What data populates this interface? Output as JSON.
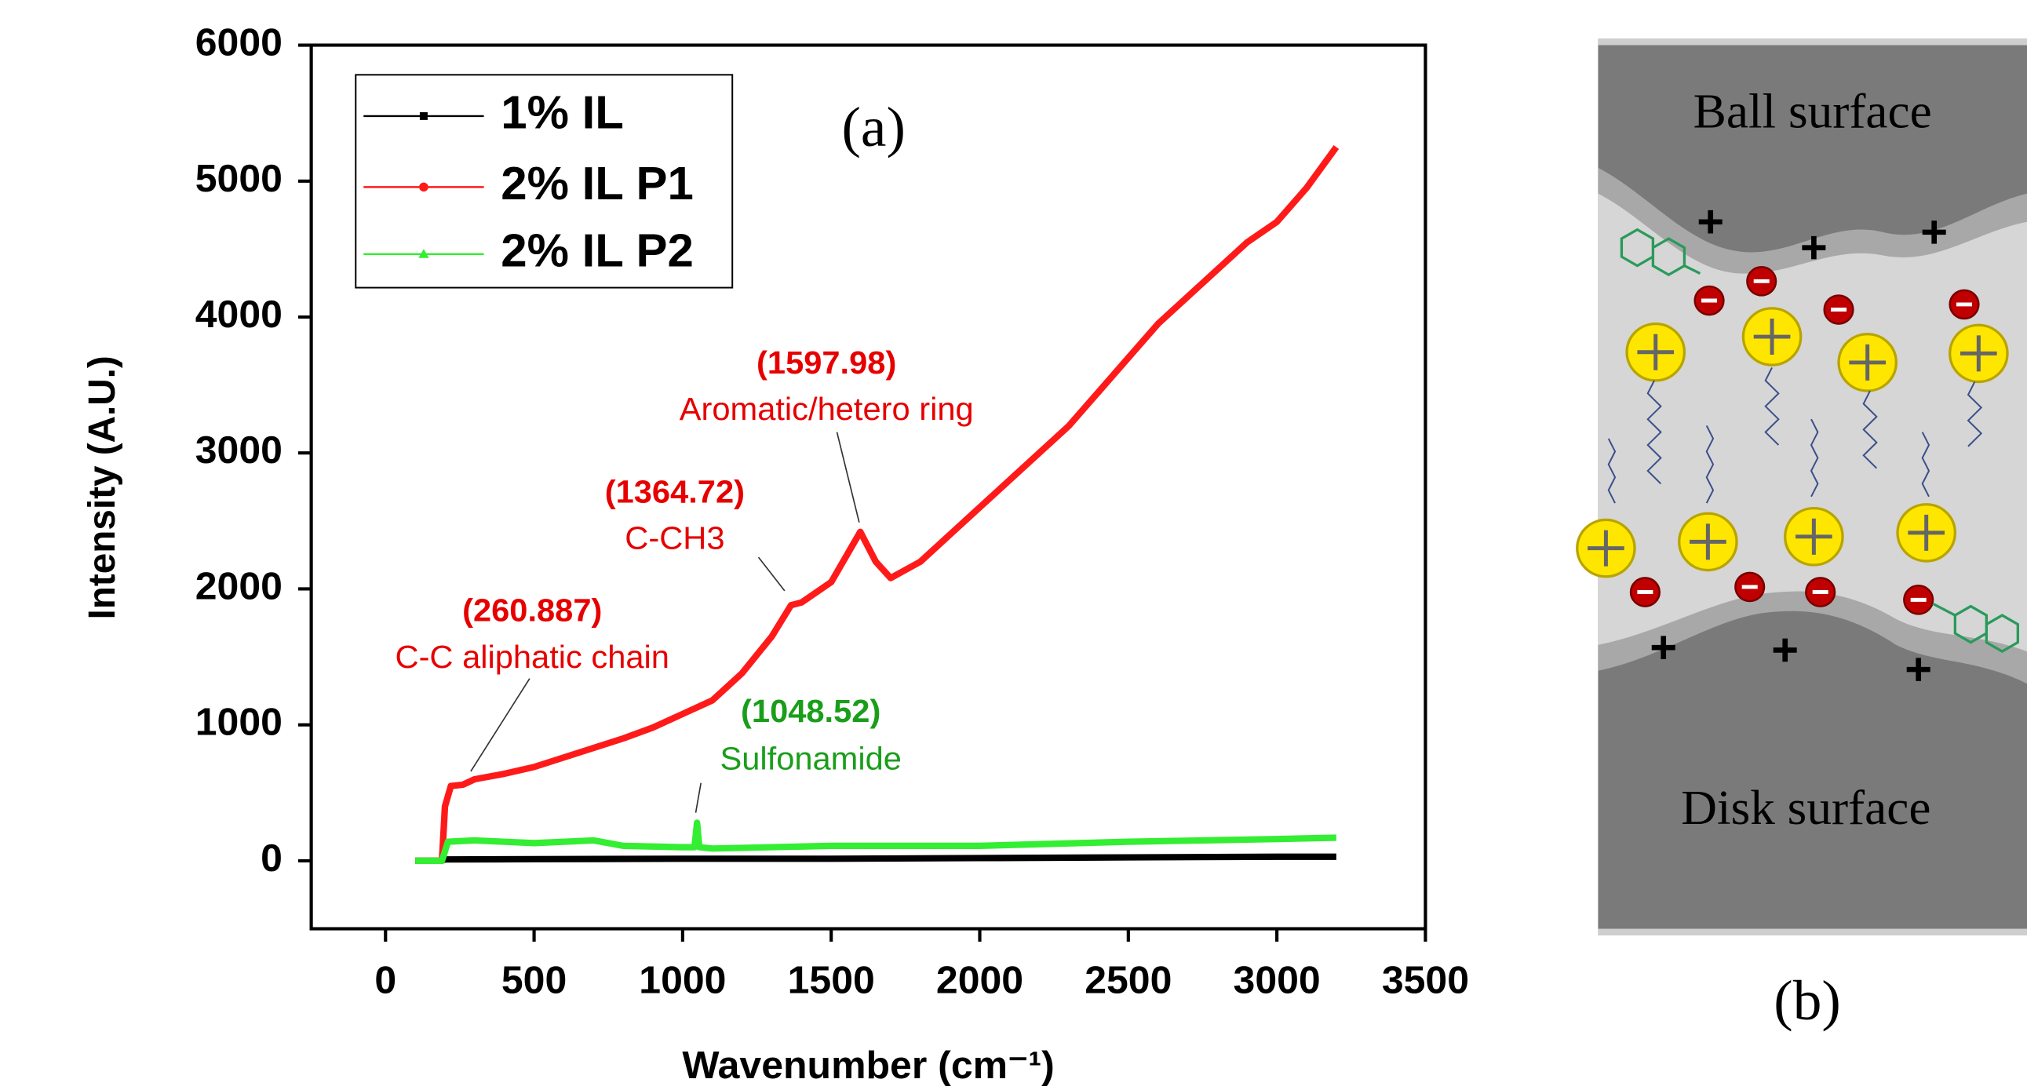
{
  "chart_data": {
    "type": "line",
    "panel_label": "(a)",
    "x_label": "Wavenumber (cm⁻¹)",
    "y_label": "Intensity (A.U.)",
    "xlim": [
      -250,
      3500
    ],
    "ylim": [
      -500,
      6000
    ],
    "xticks": [
      0,
      500,
      1000,
      1500,
      2000,
      2500,
      3000,
      3500
    ],
    "yticks": [
      0,
      1000,
      2000,
      3000,
      4000,
      5000,
      6000
    ],
    "legend": "top-left",
    "series": [
      {
        "name": "1% IL",
        "color": "#000000",
        "marker": "square",
        "x": [
          100,
          190,
          200,
          500,
          1000,
          1500,
          2000,
          2500,
          3000,
          3200
        ],
        "values": [
          0,
          0,
          10,
          12,
          15,
          15,
          20,
          25,
          30,
          30
        ]
      },
      {
        "name": "2% IL P1",
        "color": "#ff1a1a",
        "marker": "circle",
        "x": [
          100,
          150,
          190,
          200,
          220,
          260.887,
          300,
          400,
          500,
          600,
          700,
          800,
          900,
          1000,
          1100,
          1200,
          1300,
          1364.72,
          1400,
          1500,
          1597.98,
          1650,
          1700,
          1800,
          1900,
          2000,
          2100,
          2200,
          2300,
          2400,
          2500,
          2600,
          2700,
          2800,
          2900,
          3000,
          3100,
          3200
        ],
        "values": [
          0,
          0,
          0,
          400,
          550,
          560,
          600,
          640,
          690,
          760,
          830,
          900,
          980,
          1080,
          1180,
          1380,
          1650,
          1880,
          1900,
          2050,
          2420,
          2200,
          2080,
          2200,
          2400,
          2600,
          2800,
          3000,
          3200,
          3450,
          3700,
          3950,
          4150,
          4350,
          4550,
          4700,
          4950,
          5250
        ]
      },
      {
        "name": "2% IL P2",
        "color": "#33ee33",
        "marker": "triangle",
        "x": [
          100,
          190,
          210,
          300,
          500,
          700,
          800,
          1000,
          1040,
          1048.52,
          1056,
          1100,
          1500,
          2000,
          2500,
          3000,
          3200
        ],
        "values": [
          0,
          0,
          140,
          150,
          130,
          150,
          110,
          100,
          100,
          280,
          100,
          90,
          110,
          110,
          140,
          160,
          170
        ]
      }
    ],
    "annotations": [
      {
        "value_text": "(260.887)",
        "text": "C-C aliphatic chain",
        "color": "#e60000"
      },
      {
        "value_text": "(1364.72)",
        "text": "C-CH3",
        "color": "#e60000"
      },
      {
        "value_text": "(1597.98)",
        "text": "Aromatic/hetero ring",
        "color": "#e60000"
      },
      {
        "value_text": "(1048.52)",
        "text": "Sulfonamide",
        "color": "#1a9e1a"
      }
    ]
  },
  "panel_b": {
    "top_label": "Ball surface",
    "bottom_label": "Disk surface",
    "panel_label": "(b)"
  }
}
